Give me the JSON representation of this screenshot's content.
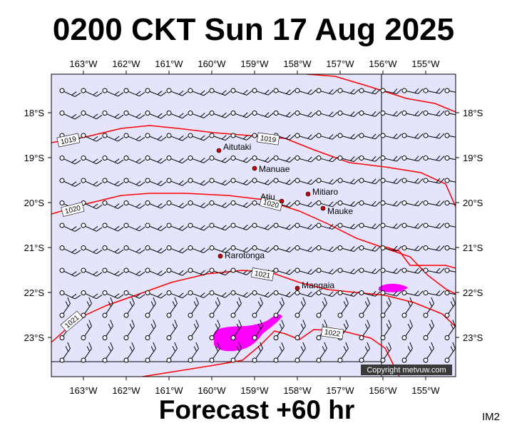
{
  "title": "0200 CKT Sun 17 Aug 2025",
  "footer": "Forecast +60 hr",
  "corner_tag": "IM2",
  "copyright": "Copyright metvuw.com",
  "map": {
    "lon_labels": [
      "163°W",
      "162°W",
      "161°W",
      "160°W",
      "159°W",
      "158°W",
      "157°W",
      "156°W",
      "155°W"
    ],
    "lat_labels": [
      "18°S",
      "19°S",
      "20°S",
      "21°S",
      "22°S",
      "23°S"
    ],
    "colors": {
      "background": "#e4e4fc",
      "isobar": "#ff0000",
      "rain": "#ff00ff",
      "coast": "#000000",
      "place_dot": "#cc0000"
    },
    "places": [
      {
        "name": "Aitutaki",
        "lon": -159.78,
        "lat": -18.86
      },
      {
        "name": "Manuae",
        "lon": -158.95,
        "lat": -19.27
      },
      {
        "name": "Mitiaro",
        "lon": -157.7,
        "lat": -19.87
      },
      {
        "name": "Atiu",
        "lon": -158.12,
        "lat": -19.99
      },
      {
        "name": "Mauke",
        "lon": -157.35,
        "lat": -20.15
      },
      {
        "name": "Rarotonga",
        "lon": -159.78,
        "lat": -21.23
      },
      {
        "name": "Mangaia",
        "lon": -157.92,
        "lat": -21.91
      }
    ],
    "isobar_labels": [
      "1019",
      "1019",
      "1020",
      "1020",
      "1021",
      "1021",
      "1022"
    ]
  }
}
